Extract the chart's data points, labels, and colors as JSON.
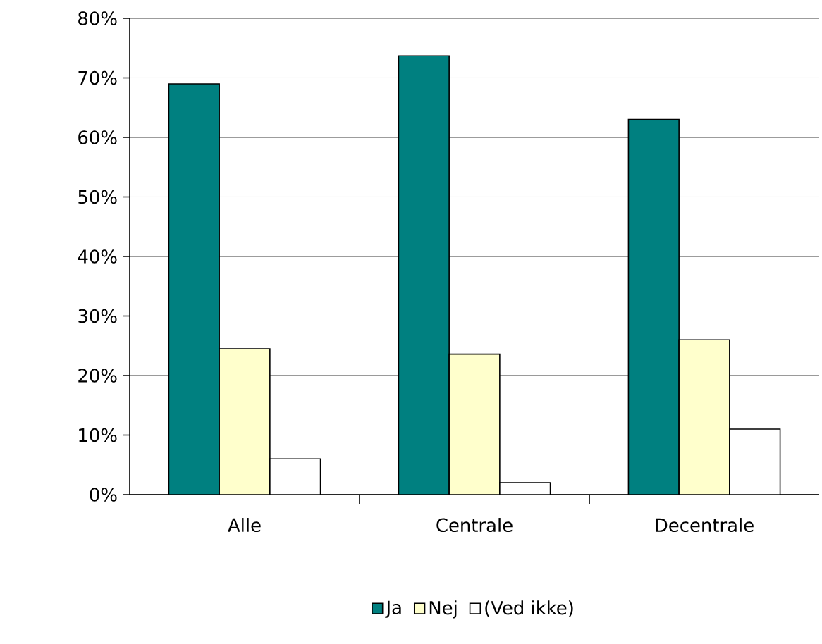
{
  "chart_data": {
    "type": "bar",
    "categories": [
      "Alle",
      "Centrale",
      "Decentrale"
    ],
    "series": [
      {
        "name": "Ja",
        "color": "#008080",
        "values": [
          69,
          73.7,
          63
        ]
      },
      {
        "name": "Nej",
        "color": "#ffffcc",
        "values": [
          24.5,
          23.6,
          26
        ]
      },
      {
        "name": "(Ved ikke)",
        "color": "#ffffff",
        "values": [
          6,
          2,
          11
        ]
      }
    ],
    "ylim": [
      0,
      80
    ],
    "yticks": [
      {
        "value": 0,
        "label": "0%"
      },
      {
        "value": 10,
        "label": "10%"
      },
      {
        "value": 20,
        "label": "20%"
      },
      {
        "value": 30,
        "label": "30%"
      },
      {
        "value": 40,
        "label": "40%"
      },
      {
        "value": 50,
        "label": "50%"
      },
      {
        "value": 60,
        "label": "60%"
      },
      {
        "value": 70,
        "label": "70%"
      },
      {
        "value": 80,
        "label": "80%"
      }
    ],
    "grid": "y",
    "legend": "bottom"
  }
}
